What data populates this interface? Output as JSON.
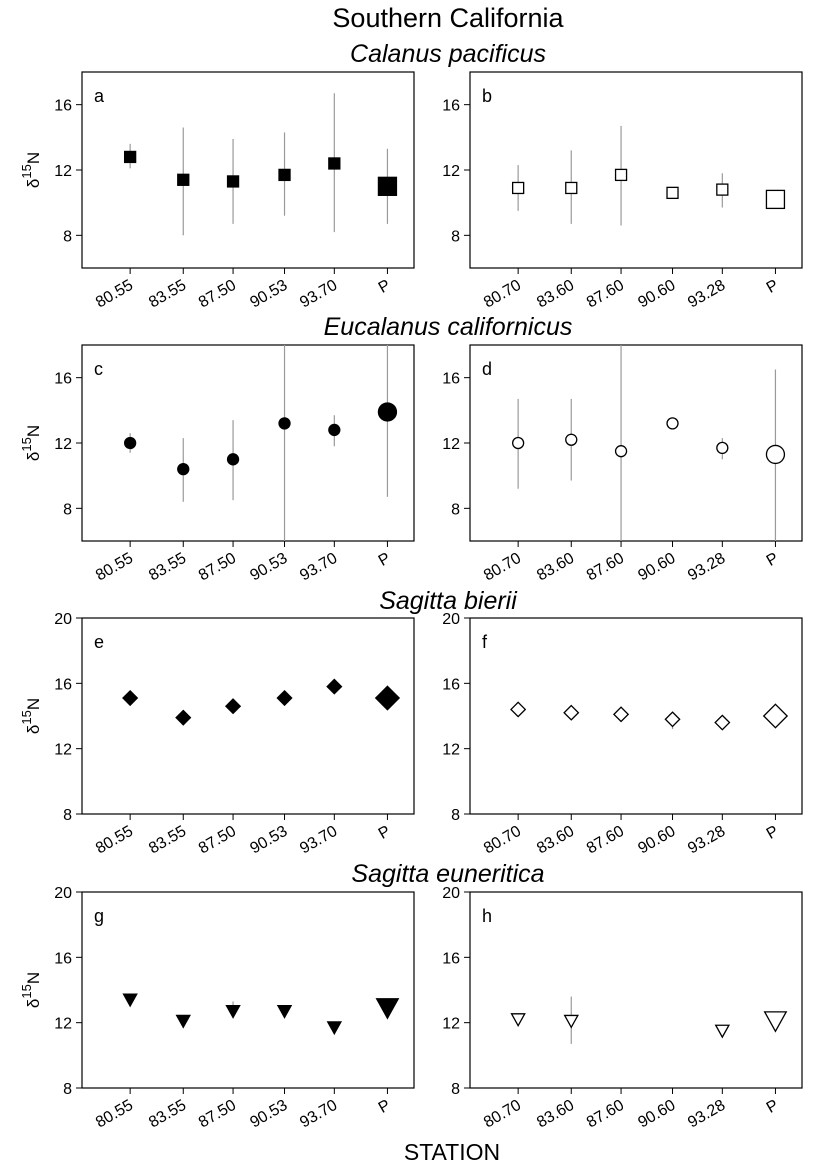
{
  "title": "Southern California",
  "xlabel": "STATION",
  "ylabel": "δ15N",
  "rows": [
    {
      "species": "Calanus pacificus"
    },
    {
      "species": "Eucalanus californicus"
    },
    {
      "species": "Sagitta bierii"
    },
    {
      "species": "Sagitta euneritica"
    }
  ],
  "chart_data": [
    {
      "type": "scatter",
      "panel": "a",
      "marker": "square",
      "filled": true,
      "categories": [
        "80.55",
        "83.55",
        "87.50",
        "90.53",
        "93.70",
        "P"
      ],
      "values": [
        12.8,
        11.4,
        11.3,
        11.7,
        12.4,
        11.0
      ],
      "error_low": [
        12.1,
        8.0,
        8.7,
        9.2,
        8.2,
        8.7
      ],
      "error_high": [
        13.6,
        14.6,
        13.9,
        14.3,
        16.7,
        13.3
      ],
      "yticks": [
        8,
        12,
        16
      ],
      "ylim": [
        6,
        18
      ],
      "ylabel": "δ15N"
    },
    {
      "type": "scatter",
      "panel": "b",
      "marker": "square",
      "filled": false,
      "categories": [
        "80.70",
        "83.60",
        "87.60",
        "90.60",
        "93.28",
        "P"
      ],
      "values": [
        10.9,
        10.9,
        11.7,
        10.6,
        10.8,
        10.2
      ],
      "error_low": [
        9.5,
        8.7,
        8.6,
        10.4,
        9.7,
        10.2
      ],
      "error_high": [
        12.3,
        13.2,
        14.7,
        10.8,
        11.8,
        10.2
      ],
      "yticks": [
        8,
        12,
        16
      ],
      "ylim": [
        6,
        18
      ]
    },
    {
      "type": "scatter",
      "panel": "c",
      "marker": "circle",
      "filled": true,
      "categories": [
        "80.55",
        "83.55",
        "87.50",
        "90.53",
        "93.70",
        "P"
      ],
      "values": [
        12.0,
        10.4,
        11.0,
        13.2,
        12.8,
        13.9
      ],
      "error_low": [
        11.4,
        8.4,
        8.5,
        6.0,
        11.8,
        8.7
      ],
      "error_high": [
        12.6,
        12.3,
        13.4,
        18.0,
        13.7,
        18.0
      ],
      "yticks": [
        8,
        12,
        16
      ],
      "ylim": [
        6,
        18
      ],
      "ylabel": "δ15N"
    },
    {
      "type": "scatter",
      "panel": "d",
      "marker": "circle",
      "filled": false,
      "categories": [
        "80.70",
        "83.60",
        "87.60",
        "90.60",
        "93.28",
        "P"
      ],
      "values": [
        12.0,
        12.2,
        11.5,
        13.2,
        11.7,
        11.3
      ],
      "error_low": [
        9.2,
        9.7,
        6.0,
        13.2,
        11.0,
        6.0
      ],
      "error_high": [
        14.7,
        14.7,
        18.0,
        13.2,
        12.3,
        16.5
      ],
      "yticks": [
        8,
        12,
        16
      ],
      "ylim": [
        6,
        18
      ]
    },
    {
      "type": "scatter",
      "panel": "e",
      "marker": "diamond",
      "filled": true,
      "categories": [
        "80.55",
        "83.55",
        "87.50",
        "90.53",
        "93.70",
        "P"
      ],
      "values": [
        15.1,
        13.9,
        14.6,
        15.1,
        15.8,
        15.1
      ],
      "error_low": [
        14.8,
        13.7,
        14.4,
        14.9,
        15.6,
        15.1
      ],
      "error_high": [
        15.4,
        14.1,
        14.8,
        15.3,
        16.0,
        15.1
      ],
      "yticks": [
        8,
        12,
        16,
        20
      ],
      "ylim": [
        8,
        20
      ],
      "ylabel": "δ15N"
    },
    {
      "type": "scatter",
      "panel": "f",
      "marker": "diamond",
      "filled": false,
      "categories": [
        "80.70",
        "83.60",
        "87.60",
        "90.60",
        "93.28",
        "P"
      ],
      "values": [
        14.4,
        14.2,
        14.1,
        13.8,
        13.6,
        14.0
      ],
      "error_low": [
        14.2,
        14.0,
        13.9,
        13.2,
        13.3,
        14.0
      ],
      "error_high": [
        14.6,
        14.4,
        14.3,
        14.1,
        13.9,
        14.0
      ],
      "yticks": [
        8,
        12,
        16,
        20
      ],
      "ylim": [
        8,
        20
      ]
    },
    {
      "type": "scatter",
      "panel": "g",
      "marker": "triangle-down",
      "filled": true,
      "categories": [
        "80.55",
        "83.55",
        "87.50",
        "90.53",
        "93.70",
        "P"
      ],
      "values": [
        13.4,
        12.1,
        12.7,
        12.7,
        11.7,
        12.9
      ],
      "error_low": [
        13.3,
        12.0,
        12.4,
        12.6,
        11.6,
        12.9
      ],
      "error_high": [
        13.5,
        12.3,
        13.3,
        12.8,
        11.8,
        12.9
      ],
      "yticks": [
        8,
        12,
        16,
        20
      ],
      "ylim": [
        8,
        20
      ],
      "ylabel": "δ15N"
    },
    {
      "type": "scatter",
      "panel": "h",
      "marker": "triangle-down",
      "filled": false,
      "categories": [
        "80.70",
        "83.60",
        "87.60",
        "90.60",
        "93.28",
        "P"
      ],
      "values": [
        12.2,
        12.1,
        null,
        null,
        11.5,
        12.1
      ],
      "error_low": [
        12.1,
        10.7,
        null,
        null,
        11.4,
        12.1
      ],
      "error_high": [
        12.3,
        13.6,
        null,
        null,
        11.6,
        12.1
      ],
      "yticks": [
        8,
        12,
        16,
        20
      ],
      "ylim": [
        8,
        20
      ]
    }
  ]
}
